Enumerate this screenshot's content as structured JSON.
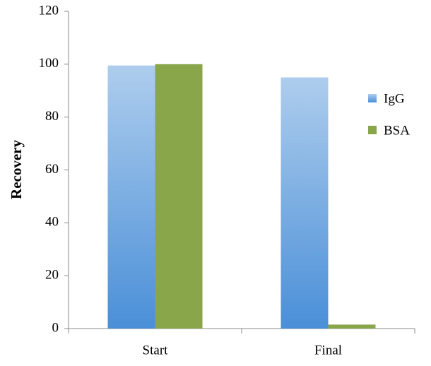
{
  "chart_data": {
    "type": "bar",
    "y_label": "Recovery",
    "categories": [
      "Start",
      "Final"
    ],
    "series": [
      {
        "name": "IgG",
        "color": "#4a8fd8",
        "values": [
          99.5,
          95
        ]
      },
      {
        "name": "BSA",
        "color": "#8aa64b",
        "values": [
          100,
          1.5
        ]
      }
    ],
    "ylim": [
      0,
      120
    ],
    "yticks": [
      0,
      20,
      40,
      60,
      80,
      100,
      120
    ],
    "grid": false,
    "legend": "right"
  }
}
